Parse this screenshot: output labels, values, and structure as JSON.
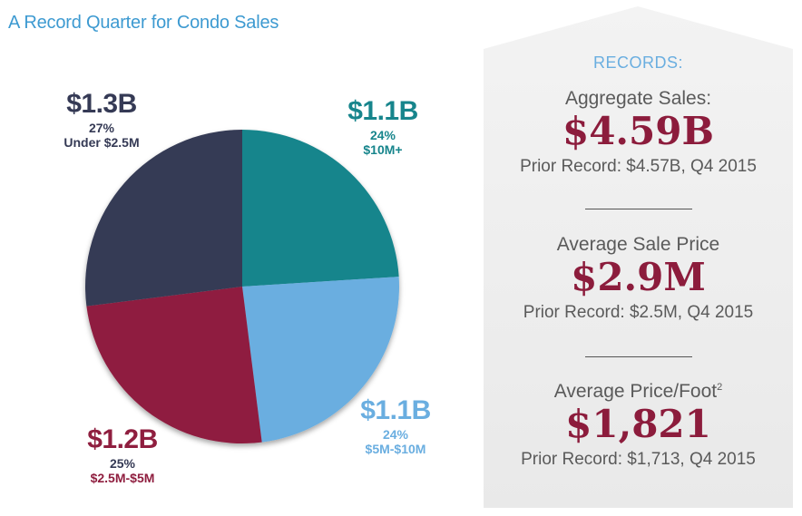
{
  "title": "A Record Quarter for Condo Sales",
  "chart_data": {
    "type": "pie",
    "title": "A Record Quarter for Condo Sales",
    "slices": [
      {
        "name": "$10M+",
        "amount": "$1.1B",
        "value": 24,
        "label": "24%",
        "color": "#17858c"
      },
      {
        "name": "$5M-$10M",
        "amount": "$1.1B",
        "value": 24,
        "label": "24%",
        "color": "#6aaee0"
      },
      {
        "name": "$2.5M-$5M",
        "amount": "$1.2B",
        "value": 25,
        "label": "25%",
        "color": "#8f1e3f"
      },
      {
        "name": "Under $2.5M",
        "amount": "$1.3B",
        "value": 27,
        "label": "27%",
        "color": "#353a55"
      }
    ]
  },
  "records": {
    "heading": "RECORDS:",
    "items": [
      {
        "label": "Aggregate Sales:",
        "label_sup": "",
        "value": "$4.59B",
        "prior": "Prior Record: $4.57B, Q4 2015"
      },
      {
        "label": "Average Sale Price",
        "label_sup": "",
        "value": "$2.9M",
        "prior": "Prior Record: $2.5M, Q4 2015"
      },
      {
        "label": "Average Price/Foot",
        "label_sup": "2",
        "value": "$1,821",
        "prior": "Prior Record: $1,713, Q4 2015"
      }
    ]
  }
}
